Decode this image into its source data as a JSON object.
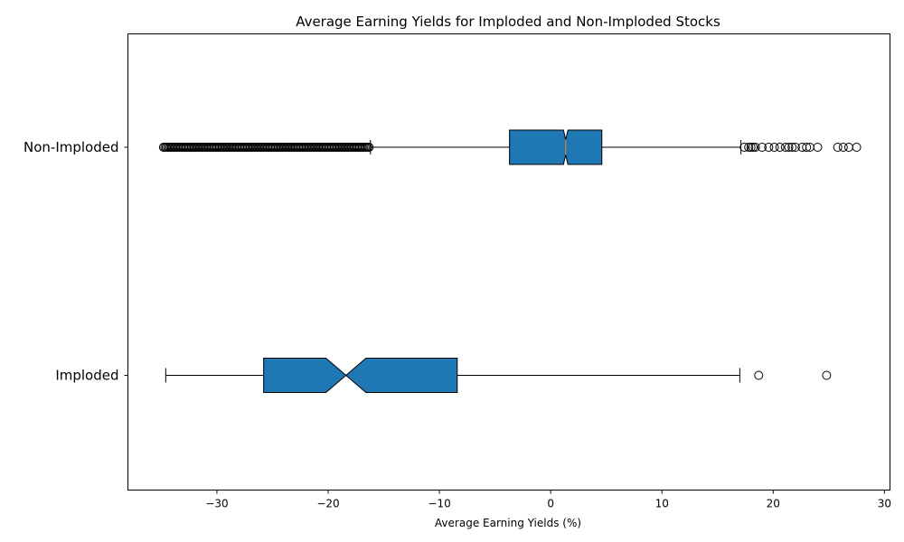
{
  "chart_data": {
    "type": "boxplot",
    "orientation": "horizontal",
    "notched": true,
    "title": "Average Earning Yields for Imploded and Non-Imploded Stocks",
    "xlabel": "Average Earning Yields (%)",
    "ylabel": "",
    "xlim": [
      -38,
      30.5
    ],
    "xticks": [
      -30,
      -20,
      -10,
      0,
      10,
      20,
      30
    ],
    "grid": false,
    "box_color": "#1f77b4",
    "median_color": "#ff7f0e",
    "categories": [
      "Imploded",
      "Non-Imploded"
    ],
    "boxes": [
      {
        "name": "Imploded",
        "whisker_low": -34.6,
        "q1": -25.8,
        "median": -18.4,
        "q3": -8.4,
        "whisker_high": 17.0,
        "notch_low": -20.2,
        "notch_high": -16.6,
        "outliers": [
          18.7,
          24.8
        ]
      },
      {
        "name": "Non-Imploded",
        "whisker_low": -16.2,
        "q1": -3.7,
        "median": 1.35,
        "q3": 4.6,
        "whisker_high": 17.1,
        "notch_low": 1.15,
        "notch_high": 1.55,
        "outliers_low_range": [
          -34.8,
          -16.3
        ],
        "outliers_high": [
          17.4,
          17.8,
          18.0,
          18.2,
          18.4,
          19.0,
          19.6,
          20.1,
          20.6,
          21.1,
          21.4,
          21.7,
          22.0,
          22.6,
          23.0,
          23.3,
          24.0,
          25.8,
          26.3,
          26.8,
          27.5
        ]
      }
    ]
  }
}
